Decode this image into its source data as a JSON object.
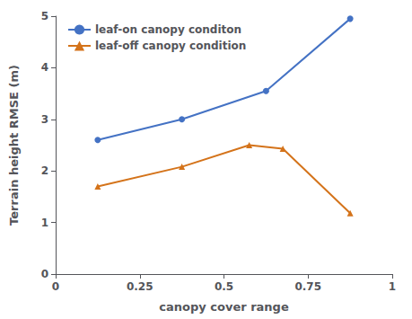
{
  "chart_data": {
    "type": "line",
    "xlabel": "canopy cover range",
    "ylabel": "Terrain height RMSE (m)",
    "series": [
      {
        "name": "leaf-on canopy conditon",
        "color": "#4472C4",
        "marker": "circle",
        "x": [
          0.125,
          0.375,
          0.625,
          0.875
        ],
        "values": [
          2.6,
          3.0,
          3.55,
          4.95
        ]
      },
      {
        "name": "leaf-off canopy condition",
        "color": "#D4731A",
        "marker": "triangle",
        "x": [
          0.125,
          0.375,
          0.575,
          0.675,
          0.875
        ],
        "values": [
          1.7,
          2.08,
          2.5,
          2.43,
          1.18
        ]
      }
    ],
    "xlim": [
      0,
      1
    ],
    "ylim": [
      0,
      5
    ],
    "xticks": [
      0,
      0.25,
      0.5,
      0.75,
      1
    ],
    "yticks": [
      0,
      1,
      2,
      3,
      4,
      5
    ],
    "grid": false,
    "legend": "upper left"
  }
}
